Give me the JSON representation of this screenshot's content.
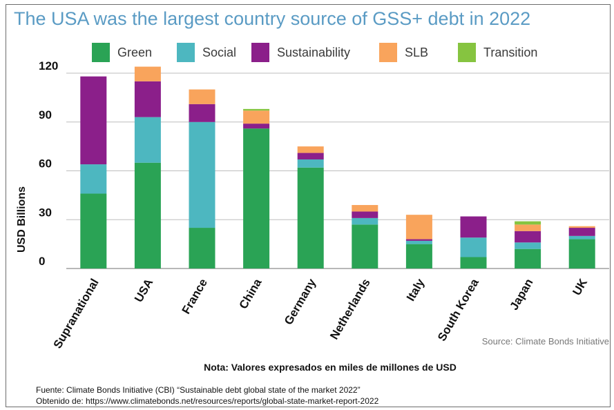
{
  "chart_data": {
    "type": "bar",
    "stacked": true,
    "title": "The USA was the largest country source of GSS+ debt in 2022",
    "ylabel": "USD Billions",
    "xlabel": "",
    "ylim": [
      0,
      120
    ],
    "yticks": [
      0,
      30,
      60,
      90,
      120
    ],
    "grid": true,
    "legend_position": "top",
    "categories": [
      "Supranational",
      "USA",
      "France",
      "China",
      "Germany",
      "Netherlands",
      "Italy",
      "South Korea",
      "Japan",
      "UK"
    ],
    "series": [
      {
        "name": "Green",
        "color": "#2aa355",
        "values": [
          46,
          65,
          25,
          86,
          62,
          27,
          15,
          7,
          12,
          18
        ]
      },
      {
        "name": "Social",
        "color": "#4db7c0",
        "values": [
          18,
          28,
          65,
          0,
          5,
          4,
          2,
          12,
          4,
          2
        ]
      },
      {
        "name": "Sustainability",
        "color": "#8b1f8a",
        "values": [
          54,
          22,
          11,
          3,
          4,
          4,
          1,
          13,
          7,
          5
        ]
      },
      {
        "name": "SLB",
        "color": "#f9a45c",
        "values": [
          0,
          9,
          9,
          8,
          4,
          4,
          15,
          0,
          4,
          1
        ]
      },
      {
        "name": "Transition",
        "color": "#86c440",
        "values": [
          0,
          0,
          0,
          1,
          0,
          0,
          0,
          0,
          2,
          0
        ]
      }
    ]
  },
  "source_text": "Source: Climate Bonds Initiative",
  "note_text": "Nota: Valores expresados en miles de millones de USD",
  "footer_line1": "Fuente: Climate Bonds Initiative (CBI) “Sustainable debt global state of the market 2022”",
  "footer_line2": "Obtenido de: https://www.climatebonds.net/resources/reports/global-state-market-report-2022"
}
